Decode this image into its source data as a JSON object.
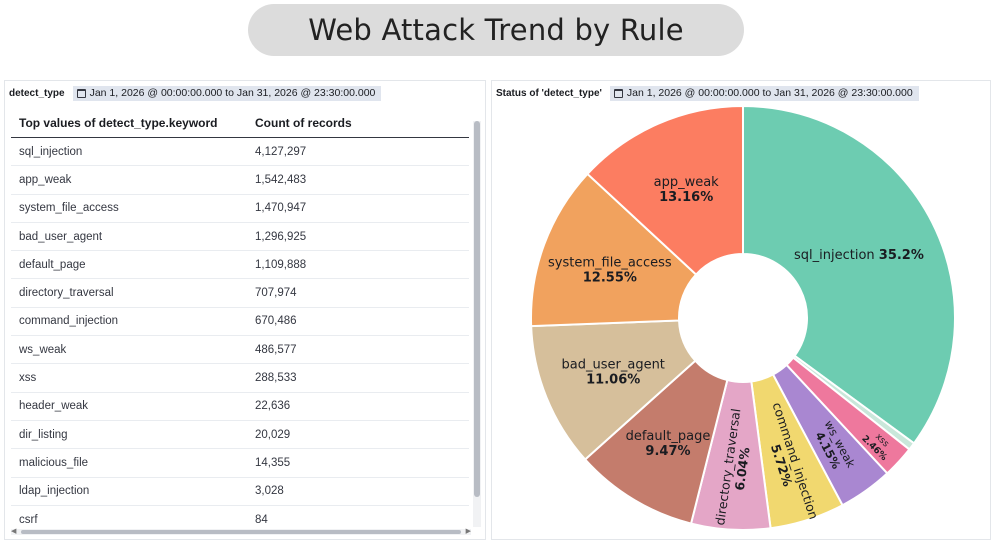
{
  "page_title": "Web Attack Trend by Rule",
  "left_panel": {
    "name": "detect_type",
    "time_range": "Jan 1, 2026 @ 00:00:00.000 to Jan 31, 2026 @ 23:30:00.000",
    "columns": [
      "Top values of detect_type.keyword",
      "Count of records"
    ],
    "rows": [
      [
        "sql_injection",
        "4,127,297"
      ],
      [
        "app_weak",
        "1,542,483"
      ],
      [
        "system_file_access",
        "1,470,947"
      ],
      [
        "bad_user_agent",
        "1,296,925"
      ],
      [
        "default_page",
        "1,109,888"
      ],
      [
        "directory_traversal",
        "707,974"
      ],
      [
        "command_injection",
        "670,486"
      ],
      [
        "ws_weak",
        "486,577"
      ],
      [
        "xss",
        "288,533"
      ],
      [
        "header_weak",
        "22,636"
      ],
      [
        "dir_listing",
        "20,029"
      ],
      [
        "malicious_file",
        "14,355"
      ],
      [
        "ldap_injection",
        "3,028"
      ],
      [
        "csrf",
        "84"
      ]
    ]
  },
  "right_panel": {
    "name": "Status of 'detect_type'",
    "time_range": "Jan 1, 2026 @ 00:00:00.000 to Jan 31, 2026 @ 23:30:00.000"
  },
  "chart_data": {
    "type": "pie",
    "donut": true,
    "start_angle_deg": 0,
    "slices": [
      {
        "label": "sql_injection",
        "percent": 35.2,
        "text": "35.2%",
        "color": "#6dccb1"
      },
      {
        "label": "",
        "percent": 0.58,
        "text": "",
        "color": "#c9e7da"
      },
      {
        "label": "xss",
        "percent": 2.46,
        "text": "2.46%",
        "color": "#ee789d"
      },
      {
        "label": "ws_weak",
        "percent": 4.15,
        "text": "4.15%",
        "color": "#a987d1"
      },
      {
        "label": "command_injection",
        "percent": 5.72,
        "text": "5.72%",
        "color": "#f1d86f"
      },
      {
        "label": "directory_traversal",
        "percent": 6.04,
        "text": "6.04%",
        "color": "#e4a6c7"
      },
      {
        "label": "default_page",
        "percent": 9.47,
        "text": "9.47%",
        "color": "#c47c6c"
      },
      {
        "label": "bad_user_agent",
        "percent": 11.06,
        "text": "11.06%",
        "color": "#d6bf9b"
      },
      {
        "label": "system_file_access",
        "percent": 12.55,
        "text": "12.55%",
        "color": "#f1a25e"
      },
      {
        "label": "app_weak",
        "percent": 13.16,
        "text": "13.16%",
        "color": "#fc7d61"
      }
    ]
  }
}
